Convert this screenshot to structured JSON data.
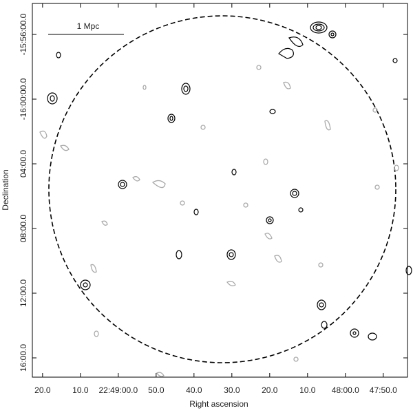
{
  "chart_data": {
    "type": "contour",
    "scale_bar_label": "1 Mpc",
    "x_label": "Right ascension",
    "y_label": "Declination",
    "xlim": [
      82162.7,
      82063.6
    ],
    "ylim": [
      -58631.5,
      -57245
    ],
    "xticks": [
      {
        "value": 82160,
        "label": "20.0"
      },
      {
        "value": 82150,
        "label": "10.0"
      },
      {
        "value": 82140,
        "label": "22:49:00.0"
      },
      {
        "value": 82130,
        "label": "50.0"
      },
      {
        "value": 82120,
        "label": "40.0"
      },
      {
        "value": 82110,
        "label": "30.0"
      },
      {
        "value": 82100,
        "label": "20.0"
      },
      {
        "value": 82090,
        "label": "10.0"
      },
      {
        "value": 82080,
        "label": "48:00.0"
      },
      {
        "value": 82070,
        "label": "47:50.0"
      }
    ],
    "yticks": [
      {
        "value": -57360,
        "label": "-15:56:00.0"
      },
      {
        "value": -57600,
        "label": "-16:00:00.0"
      },
      {
        "value": -57840,
        "label": "04:00.0"
      },
      {
        "value": -58080,
        "label": "08:00.0"
      },
      {
        "value": -58320,
        "label": "12:00.0"
      },
      {
        "value": -58560,
        "label": "16:00.0"
      }
    ]
  }
}
